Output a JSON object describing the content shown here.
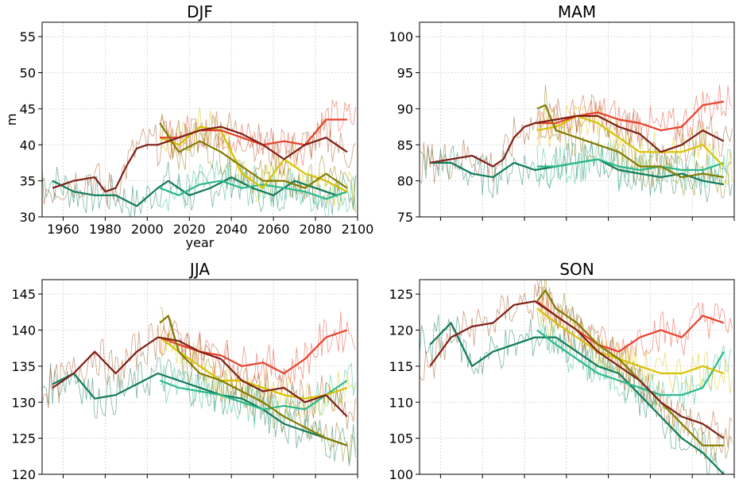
{
  "figure": {
    "panels": [
      {
        "title": "DJF",
        "ylabel": "m",
        "xlabel": "year",
        "show_x_tick_labels": true,
        "ylim": [
          30,
          57
        ],
        "yticks": [
          30,
          35,
          40,
          45,
          50,
          55
        ]
      },
      {
        "title": "MAM",
        "ylabel": "",
        "xlabel": "",
        "show_x_tick_labels": false,
        "ylim": [
          75,
          102
        ],
        "yticks": [
          75,
          80,
          85,
          90,
          95,
          100
        ]
      },
      {
        "title": "JJA",
        "ylabel": "",
        "xlabel": "",
        "show_x_tick_labels": false,
        "ylim": [
          120,
          147
        ],
        "yticks": [
          120,
          125,
          130,
          135,
          140,
          145
        ]
      },
      {
        "title": "SON",
        "ylabel": "",
        "xlabel": "",
        "show_x_tick_labels": false,
        "ylim": [
          100,
          127
        ],
        "yticks": [
          100,
          105,
          110,
          115,
          120,
          125
        ]
      }
    ],
    "xlim": [
      1950,
      2100
    ],
    "xticks": [
      1960,
      1980,
      2000,
      2020,
      2040,
      2060,
      2080,
      2100
    ],
    "grid": true,
    "series_colors": [
      "#0f7a5a",
      "#2ab98a",
      "#d9c200",
      "#e8402a",
      "#857a00",
      "#7e1f16"
    ],
    "historical_color": "#a0521e"
  },
  "chart_data": [
    {
      "type": "line",
      "title": "DJF",
      "xlabel": "year",
      "ylabel": "m",
      "xlim": [
        1950,
        2100
      ],
      "ylim": [
        30,
        57
      ],
      "series": [
        {
          "color": "#0f7a5a",
          "x": [
            1955,
            1965,
            1975,
            1985,
            1995,
            2005,
            2010,
            2020,
            2030,
            2040,
            2050,
            2060,
            2070,
            2080,
            2090,
            2095
          ],
          "y": [
            35,
            33.5,
            33,
            33,
            31.5,
            34,
            35,
            33,
            34,
            35.5,
            34,
            33,
            35,
            34,
            33,
            33.5
          ]
        },
        {
          "color": "#2ab98a",
          "x": [
            2006,
            2015,
            2025,
            2035,
            2045,
            2055,
            2065,
            2075,
            2085,
            2095
          ],
          "y": [
            34,
            33,
            34.5,
            35,
            34,
            34.5,
            34,
            33.5,
            32.5,
            33.5
          ]
        },
        {
          "color": "#d9c200",
          "x": [
            2006,
            2015,
            2025,
            2035,
            2045,
            2055,
            2065,
            2075,
            2085,
            2095
          ],
          "y": [
            41,
            40,
            42.5,
            42,
            36,
            34,
            38,
            36,
            35,
            33.5
          ]
        },
        {
          "color": "#e8402a",
          "x": [
            2006,
            2015,
            2025,
            2035,
            2045,
            2055,
            2065,
            2075,
            2085,
            2095
          ],
          "y": [
            41,
            41,
            42,
            42,
            41,
            40,
            40.5,
            40,
            43.5,
            43.5
          ]
        },
        {
          "color": "#857a00",
          "x": [
            2006,
            2015,
            2025,
            2035,
            2045,
            2055,
            2065,
            2075,
            2085,
            2095
          ],
          "y": [
            43,
            39,
            40.5,
            39,
            37,
            35,
            35,
            34,
            36,
            34
          ]
        },
        {
          "color": "#7e1f16",
          "x": [
            1955,
            1965,
            1975,
            1980,
            1985,
            1990,
            1995,
            2000,
            2005,
            2015,
            2025,
            2035,
            2045,
            2055,
            2065,
            2075,
            2085,
            2095
          ],
          "y": [
            34,
            35,
            35.5,
            33.5,
            34,
            37,
            39.5,
            40,
            40,
            41,
            42,
            42.5,
            41.5,
            40,
            38,
            40,
            41,
            39
          ]
        }
      ]
    },
    {
      "type": "line",
      "title": "MAM",
      "xlim": [
        1950,
        2100
      ],
      "ylim": [
        75,
        102
      ],
      "series": [
        {
          "color": "#0f7a5a",
          "x": [
            1955,
            1965,
            1975,
            1985,
            1995,
            2005,
            2015,
            2025,
            2035,
            2045,
            2055,
            2065,
            2075,
            2085,
            2095
          ],
          "y": [
            82.5,
            82.5,
            81,
            80.5,
            82.5,
            81.5,
            82,
            82.5,
            83,
            81.5,
            81,
            80.5,
            81,
            80,
            79.5
          ]
        },
        {
          "color": "#2ab98a",
          "x": [
            2006,
            2015,
            2025,
            2035,
            2045,
            2055,
            2065,
            2075,
            2085,
            2095
          ],
          "y": [
            82,
            82,
            82.5,
            83,
            82,
            81.5,
            82,
            81.5,
            81.5,
            82.5
          ]
        },
        {
          "color": "#d9c200",
          "x": [
            2006,
            2015,
            2025,
            2035,
            2045,
            2055,
            2065,
            2075,
            2085,
            2095
          ],
          "y": [
            87,
            87.5,
            89,
            88,
            86,
            84,
            84,
            84,
            85,
            82
          ]
        },
        {
          "color": "#e8402a",
          "x": [
            2006,
            2015,
            2025,
            2035,
            2045,
            2055,
            2065,
            2075,
            2085,
            2095
          ],
          "y": [
            88,
            88,
            89,
            89.5,
            88.5,
            88,
            87,
            87.5,
            90.5,
            91
          ]
        },
        {
          "color": "#857a00",
          "x": [
            2006,
            2010,
            2015,
            2025,
            2035,
            2045,
            2055,
            2065,
            2075,
            2085,
            2095
          ],
          "y": [
            90,
            90.5,
            87,
            86,
            85,
            84,
            82,
            82,
            80.5,
            81,
            80.5
          ]
        },
        {
          "color": "#7e1f16",
          "x": [
            1955,
            1965,
            1975,
            1985,
            1990,
            1995,
            2000,
            2005,
            2015,
            2025,
            2035,
            2045,
            2055,
            2065,
            2075,
            2085,
            2095
          ],
          "y": [
            82.5,
            83,
            83.5,
            82,
            83,
            86,
            87.5,
            88,
            88.5,
            89,
            89,
            87.5,
            86.5,
            84,
            85,
            87,
            85.5
          ]
        }
      ]
    },
    {
      "type": "line",
      "title": "JJA",
      "xlim": [
        1950,
        2100
      ],
      "ylim": [
        120,
        147
      ],
      "series": [
        {
          "color": "#0f7a5a",
          "x": [
            1955,
            1965,
            1975,
            1985,
            1995,
            2005,
            2015,
            2025,
            2035,
            2045,
            2055,
            2065,
            2075,
            2085,
            2095
          ],
          "y": [
            132.5,
            134,
            130.5,
            131,
            132.5,
            134,
            133,
            132,
            131,
            130.5,
            129,
            127,
            126,
            125,
            124
          ]
        },
        {
          "color": "#2ab98a",
          "x": [
            2006,
            2015,
            2025,
            2035,
            2045,
            2055,
            2065,
            2075,
            2085,
            2095
          ],
          "y": [
            133,
            132,
            131.5,
            131,
            130,
            129,
            129.5,
            129,
            131,
            133
          ]
        },
        {
          "color": "#d9c200",
          "x": [
            2006,
            2015,
            2025,
            2035,
            2045,
            2055,
            2065,
            2075,
            2085,
            2095
          ],
          "y": [
            139,
            137,
            135,
            133,
            133,
            132,
            131,
            130.5,
            131,
            132
          ]
        },
        {
          "color": "#e8402a",
          "x": [
            2006,
            2015,
            2025,
            2035,
            2045,
            2055,
            2065,
            2075,
            2085,
            2095
          ],
          "y": [
            139,
            138,
            137,
            136.5,
            135,
            135.5,
            134,
            136,
            139,
            140
          ]
        },
        {
          "color": "#857a00",
          "x": [
            2006,
            2010,
            2015,
            2025,
            2035,
            2045,
            2055,
            2065,
            2075,
            2085,
            2095
          ],
          "y": [
            141,
            142,
            137,
            134,
            133,
            131.5,
            130,
            128,
            126.5,
            125,
            124
          ]
        },
        {
          "color": "#7e1f16",
          "x": [
            1955,
            1965,
            1975,
            1985,
            1995,
            2005,
            2015,
            2025,
            2035,
            2045,
            2055,
            2065,
            2075,
            2085,
            2095
          ],
          "y": [
            132,
            134,
            137,
            134,
            137,
            139,
            138.5,
            137,
            136,
            133,
            131.5,
            132,
            130,
            131,
            128
          ]
        }
      ]
    },
    {
      "type": "line",
      "title": "SON",
      "xlim": [
        1950,
        2100
      ],
      "ylim": [
        100,
        127
      ],
      "series": [
        {
          "color": "#0f7a5a",
          "x": [
            1955,
            1965,
            1975,
            1985,
            1995,
            2005,
            2015,
            2025,
            2035,
            2045,
            2055,
            2065,
            2075,
            2085,
            2095
          ],
          "y": [
            118,
            121,
            115,
            117,
            118,
            119,
            119,
            117,
            115,
            114,
            111,
            108,
            105,
            103,
            100
          ]
        },
        {
          "color": "#2ab98a",
          "x": [
            2006,
            2015,
            2025,
            2035,
            2045,
            2055,
            2065,
            2075,
            2085,
            2095
          ],
          "y": [
            120,
            118,
            116,
            114,
            113,
            112,
            111,
            111,
            112,
            117
          ]
        },
        {
          "color": "#d9c200",
          "x": [
            2006,
            2015,
            2025,
            2035,
            2045,
            2055,
            2065,
            2075,
            2085,
            2095
          ],
          "y": [
            123,
            121,
            119,
            117,
            116,
            115,
            114,
            114,
            115,
            114
          ]
        },
        {
          "color": "#e8402a",
          "x": [
            2006,
            2015,
            2025,
            2035,
            2045,
            2055,
            2065,
            2075,
            2085,
            2095
          ],
          "y": [
            124,
            122,
            120,
            118,
            117,
            119,
            120,
            119,
            122,
            121
          ]
        },
        {
          "color": "#857a00",
          "x": [
            2006,
            2010,
            2015,
            2025,
            2035,
            2045,
            2055,
            2065,
            2075,
            2085,
            2095
          ],
          "y": [
            124,
            125.5,
            123,
            121,
            118,
            116,
            113,
            110,
            107,
            104,
            104
          ]
        },
        {
          "color": "#7e1f16",
          "x": [
            1955,
            1965,
            1975,
            1985,
            1995,
            2005,
            2015,
            2025,
            2035,
            2045,
            2055,
            2065,
            2075,
            2085,
            2095
          ],
          "y": [
            115,
            119,
            120.5,
            121,
            123.5,
            124,
            122,
            120,
            117,
            115,
            113,
            110,
            108,
            107,
            105
          ]
        }
      ]
    }
  ]
}
